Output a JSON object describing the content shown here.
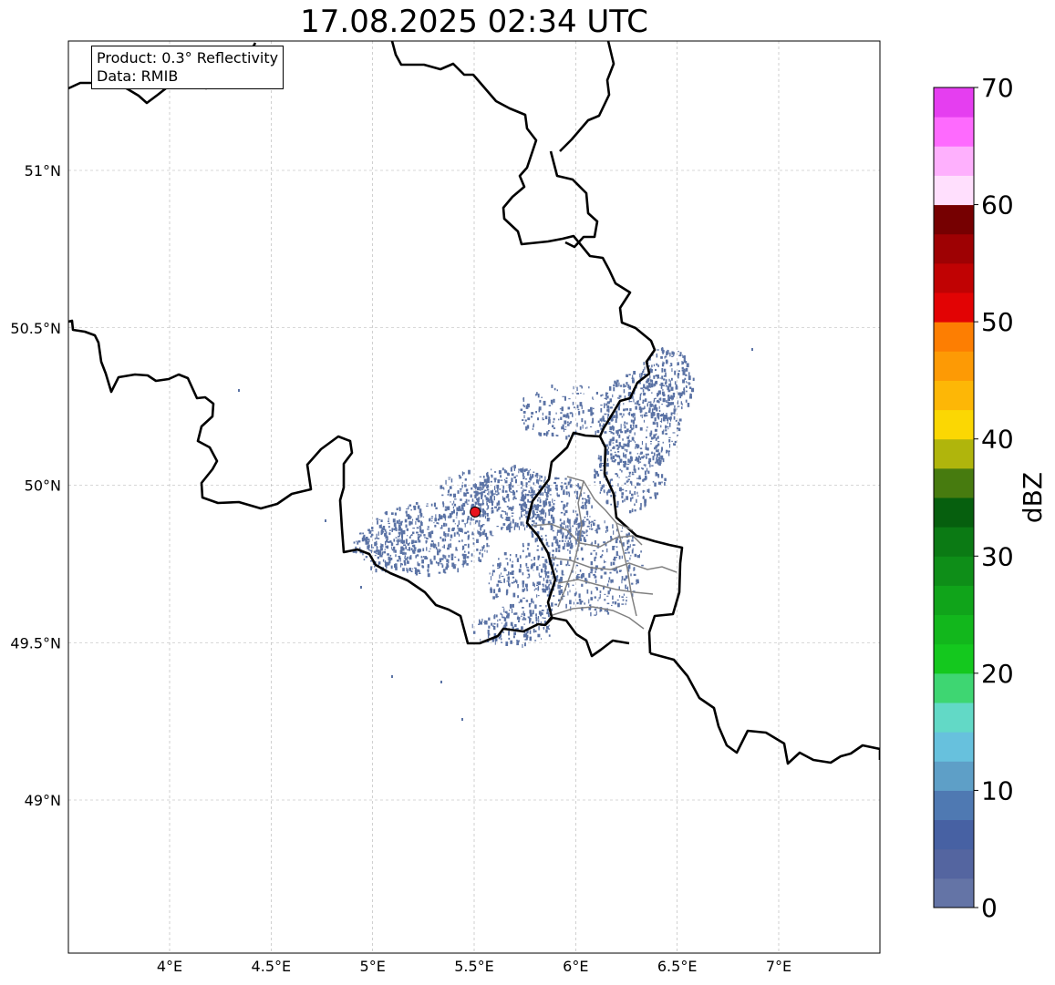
{
  "title": "17.08.2025 02:34 UTC",
  "info": {
    "product_line": "Product: 0.3° Reflectivity",
    "data_line": "Data: RMIB"
  },
  "map": {
    "extent": {
      "lon_min": 3.5,
      "lon_max": 7.5,
      "lat_min": 48.5,
      "lat_max": 51.4
    },
    "lon_ticks": [
      {
        "value": 4.0,
        "label": "4°E"
      },
      {
        "value": 4.5,
        "label": "4.5°E"
      },
      {
        "value": 5.0,
        "label": "5°E"
      },
      {
        "value": 5.5,
        "label": "5.5°E"
      },
      {
        "value": 6.0,
        "label": "6°E"
      },
      {
        "value": 6.5,
        "label": "6.5°E"
      },
      {
        "value": 7.0,
        "label": "7°E"
      }
    ],
    "lat_ticks": [
      {
        "value": 49.0,
        "label": "49°N"
      },
      {
        "value": 49.5,
        "label": "49.5°N"
      },
      {
        "value": 50.0,
        "label": "50°N"
      },
      {
        "value": 50.5,
        "label": "50.5°N"
      },
      {
        "value": 51.0,
        "label": "51°N"
      }
    ],
    "radar_site": {
      "lon": 5.505,
      "lat": 49.915,
      "color": "#e8141c"
    },
    "echo_color": "#5b73a5",
    "border_color": "#000000",
    "subdivision_color": "#808080"
  },
  "colorbar": {
    "unit": "dBZ",
    "min": 0,
    "max": 70,
    "tick_labels": [
      {
        "value": 0,
        "label": "0"
      },
      {
        "value": 10,
        "label": "10"
      },
      {
        "value": 20,
        "label": "20"
      },
      {
        "value": 30,
        "label": "30"
      },
      {
        "value": 40,
        "label": "40"
      },
      {
        "value": 50,
        "label": "50"
      },
      {
        "value": 60,
        "label": "60"
      },
      {
        "value": 70,
        "label": "70"
      }
    ],
    "colors": [
      "#6474a6",
      "#5465a0",
      "#4761a3",
      "#4f79b2",
      "#5e9fc7",
      "#67c1dd",
      "#62d9c6",
      "#3ed672",
      "#14c81e",
      "#12b71c",
      "#10a41a",
      "#0e8e18",
      "#0b7a14",
      "#065f0e",
      "#477b0f",
      "#b0b50c",
      "#fbd703",
      "#fdb706",
      "#fd9a05",
      "#fd7e02",
      "#e20304",
      "#c00203",
      "#9e0103",
      "#760001",
      "#ffdffd",
      "#feb0fd",
      "#fe6afe",
      "#e53ef0"
    ]
  }
}
